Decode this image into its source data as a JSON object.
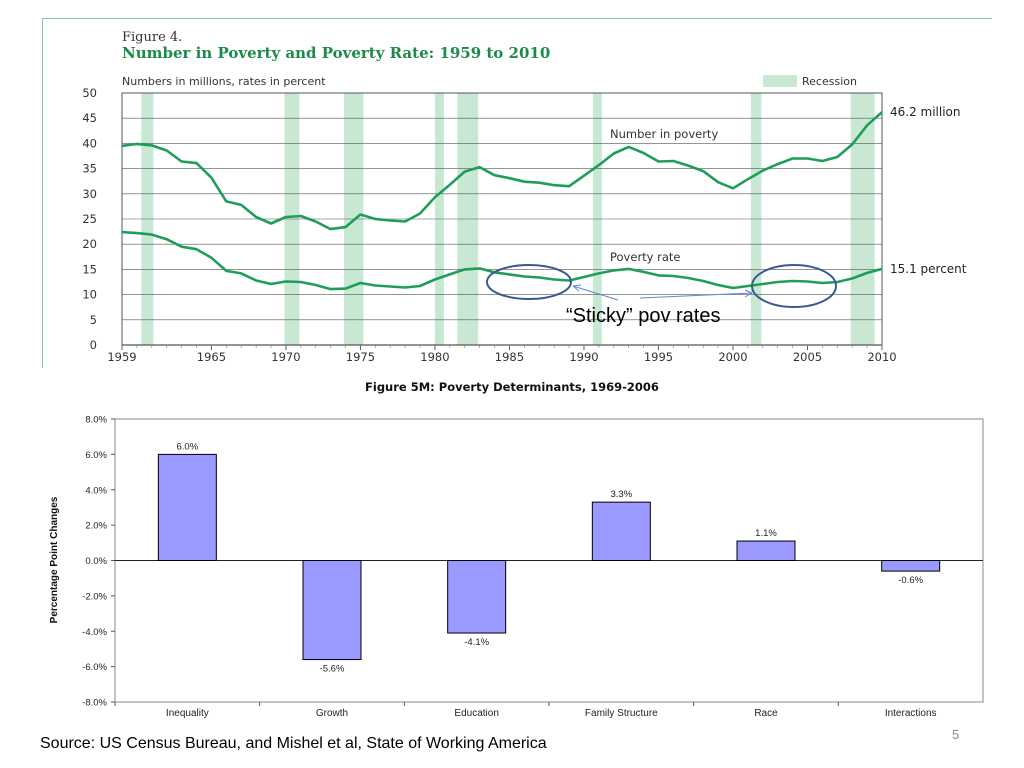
{
  "figure4": {
    "caption": "Figure 4.",
    "title": "Number in Poverty and Poverty Rate: 1959 to 2010",
    "units_note": "Numbers in millions, rates in percent",
    "legend": "Recession",
    "colors": {
      "line": "#1f9e5a",
      "recession": "#c8e8d4",
      "title": "#1b8a4a"
    }
  },
  "annotation": {
    "sticky": "“Sticky” pov rates"
  },
  "figure5": {
    "title": "Figure 5M: Poverty Determinants, 1969-2006"
  },
  "footer": {
    "source": "Source: US Census Bureau, and Mishel et al, State of Working America",
    "page_number": "5"
  },
  "chart_data": [
    {
      "type": "line",
      "title": "Number in Poverty and Poverty Rate: 1959 to 2010",
      "ylabel": "Numbers in millions, rates in percent",
      "ylim": [
        0,
        50
      ],
      "y_ticks": [
        0,
        5,
        10,
        15,
        20,
        25,
        30,
        35,
        40,
        45,
        50
      ],
      "x_ticks": [
        1959,
        1965,
        1970,
        1975,
        1980,
        1985,
        1990,
        1995,
        2000,
        2005,
        2010
      ],
      "xlim": [
        1959,
        2010
      ],
      "recessions": [
        [
          1960.3,
          1961.1
        ],
        [
          1969.9,
          1970.9
        ],
        [
          1973.9,
          1975.2
        ],
        [
          1980.0,
          1980.6
        ],
        [
          1981.5,
          1982.9
        ],
        [
          1990.6,
          1991.2
        ],
        [
          2001.2,
          2001.9
        ],
        [
          2007.9,
          2009.5
        ]
      ],
      "series": [
        {
          "name": "Number in poverty",
          "end_label": "46.2 million",
          "x": [
            1959,
            1960,
            1961,
            1962,
            1963,
            1964,
            1965,
            1966,
            1967,
            1968,
            1969,
            1970,
            1971,
            1972,
            1973,
            1974,
            1975,
            1976,
            1977,
            1978,
            1979,
            1980,
            1981,
            1982,
            1983,
            1984,
            1985,
            1986,
            1987,
            1988,
            1989,
            1990,
            1991,
            1992,
            1993,
            1994,
            1995,
            1996,
            1997,
            1998,
            1999,
            2000,
            2001,
            2002,
            2003,
            2004,
            2005,
            2006,
            2007,
            2008,
            2009,
            2010
          ],
          "values": [
            39.5,
            39.9,
            39.6,
            38.6,
            36.4,
            36.1,
            33.2,
            28.5,
            27.8,
            25.4,
            24.1,
            25.4,
            25.6,
            24.5,
            23.0,
            23.4,
            25.9,
            25.0,
            24.7,
            24.5,
            26.1,
            29.3,
            31.8,
            34.4,
            35.3,
            33.7,
            33.1,
            32.4,
            32.2,
            31.7,
            31.5,
            33.6,
            35.7,
            38.0,
            39.3,
            38.1,
            36.4,
            36.5,
            35.6,
            34.5,
            32.3,
            31.1,
            32.9,
            34.6,
            35.9,
            37.0,
            37.0,
            36.5,
            37.3,
            39.8,
            43.6,
            46.2
          ]
        },
        {
          "name": "Poverty rate",
          "end_label": "15.1 percent",
          "x": [
            1959,
            1960,
            1961,
            1962,
            1963,
            1964,
            1965,
            1966,
            1967,
            1968,
            1969,
            1970,
            1971,
            1972,
            1973,
            1974,
            1975,
            1976,
            1977,
            1978,
            1979,
            1980,
            1981,
            1982,
            1983,
            1984,
            1985,
            1986,
            1987,
            1988,
            1989,
            1990,
            1991,
            1992,
            1993,
            1994,
            1995,
            1996,
            1997,
            1998,
            1999,
            2000,
            2001,
            2002,
            2003,
            2004,
            2005,
            2006,
            2007,
            2008,
            2009,
            2010
          ],
          "values": [
            22.4,
            22.2,
            21.9,
            21.0,
            19.5,
            19.0,
            17.3,
            14.7,
            14.2,
            12.8,
            12.1,
            12.6,
            12.5,
            11.9,
            11.1,
            11.2,
            12.3,
            11.8,
            11.6,
            11.4,
            11.7,
            13.0,
            14.0,
            15.0,
            15.2,
            14.4,
            14.0,
            13.6,
            13.4,
            13.0,
            12.8,
            13.5,
            14.2,
            14.8,
            15.1,
            14.5,
            13.8,
            13.7,
            13.3,
            12.7,
            11.9,
            11.3,
            11.7,
            12.1,
            12.5,
            12.7,
            12.6,
            12.3,
            12.5,
            13.2,
            14.3,
            15.1
          ]
        }
      ]
    },
    {
      "type": "bar",
      "title": "Figure 5M: Poverty Determinants, 1969-2006",
      "ylabel": "Percentage Point Changes",
      "ylim": [
        -8.0,
        8.0
      ],
      "y_ticks": [
        "8.0%",
        "6.0%",
        "4.0%",
        "2.0%",
        "0.0%",
        "-2.0%",
        "-4.0%",
        "-6.0%",
        "-8.0%"
      ],
      "categories": [
        "Inequality",
        "Growth",
        "Education",
        "Family Structure",
        "Race",
        "Interactions"
      ],
      "values": [
        6.0,
        -5.6,
        -4.1,
        3.3,
        1.1,
        -0.6
      ],
      "value_labels": [
        "6.0%",
        "-5.6%",
        "-4.1%",
        "3.3%",
        "1.1%",
        "-0.6%"
      ],
      "bar_color": "#9999ff"
    }
  ]
}
